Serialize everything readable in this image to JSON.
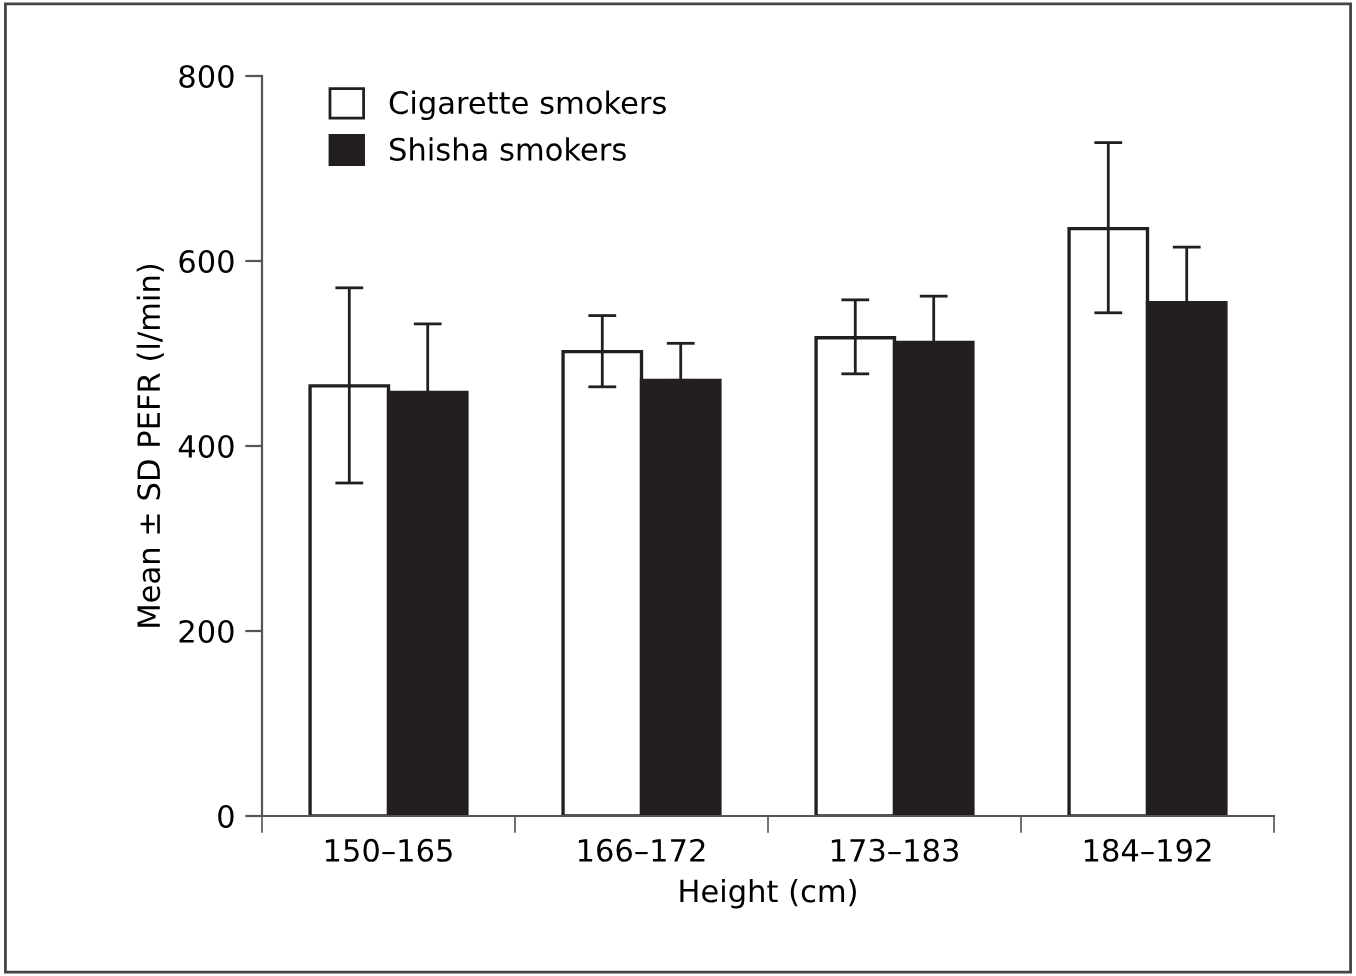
{
  "chart_data": {
    "type": "bar",
    "xlabel": "Height (cm)",
    "ylabel": "Mean ± SD PEFR (l/min)",
    "categories": [
      "150–165",
      "166–172",
      "173–183",
      "184–192"
    ],
    "series": [
      {
        "name": "Cigarette smokers",
        "color": "#ffffff",
        "values": [
          465,
          502,
          517,
          635
        ],
        "errors": [
          [
            360,
            571
          ],
          [
            464,
            541
          ],
          [
            478,
            558
          ],
          [
            544,
            728
          ]
        ]
      },
      {
        "name": "Shisha smokers",
        "color": "#231f20",
        "values": [
          458,
          471,
          512,
          555
        ],
        "errors": [
          [
            458,
            532
          ],
          [
            471,
            511
          ],
          [
            512,
            562
          ],
          [
            555,
            615
          ]
        ]
      }
    ],
    "ylim": [
      0,
      800
    ],
    "yticks": [
      0,
      200,
      400,
      600,
      800
    ],
    "grid": false,
    "legend": "top left"
  }
}
